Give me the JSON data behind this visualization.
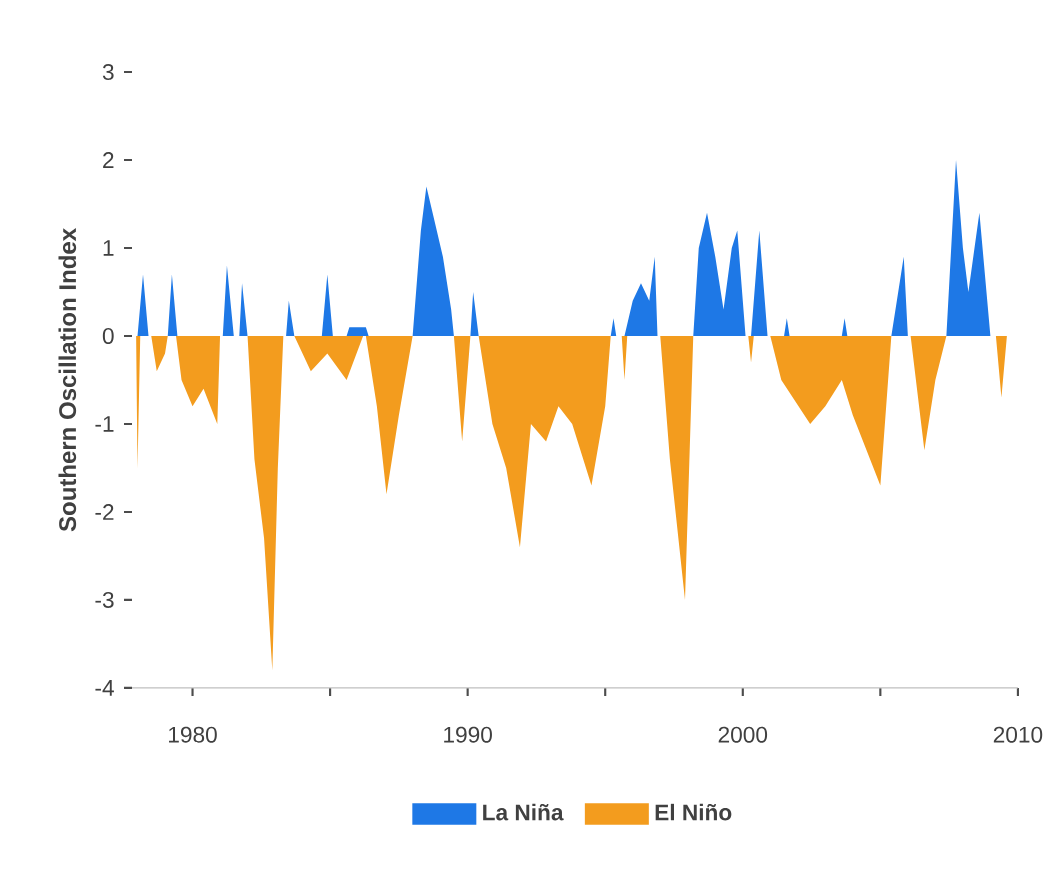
{
  "chart_data": {
    "type": "area",
    "ylabel": "Southern Oscillation Index",
    "xlim": [
      1977.8,
      2010
    ],
    "ylim": [
      -4,
      3
    ],
    "xticks": [
      1980,
      {
        "value": 1985,
        "label": null
      },
      1990,
      {
        "value": 1995,
        "label": null
      },
      2000,
      {
        "value": 2005,
        "label": null
      },
      2010
    ],
    "yticks": [
      -4,
      -3,
      -2,
      -1,
      0,
      1,
      2,
      3
    ],
    "legend": "bottom",
    "series": [
      {
        "name": "La Niña",
        "color": "#1e78e6",
        "x": [
          1978.0,
          1978.2,
          1978.4,
          1979.1,
          1979.25,
          1979.45,
          1981.1,
          1981.25,
          1981.5,
          1981.7,
          1981.8,
          1982.0,
          1983.4,
          1983.5,
          1983.7,
          1984.7,
          1984.9,
          1985.1,
          1985.6,
          1985.7,
          1986.3,
          1986.4,
          1988.0,
          1988.3,
          1988.5,
          1988.8,
          1989.1,
          1989.4,
          1989.5,
          1990.1,
          1990.2,
          1990.4,
          1995.2,
          1995.3,
          1995.4,
          1995.7,
          1996.0,
          1996.3,
          1996.6,
          1996.8,
          1996.9,
          1998.2,
          1998.4,
          1998.7,
          1999.0,
          1999.3,
          1999.6,
          1999.8,
          2000.1,
          2000.3,
          2000.6,
          2000.9,
          2001.5,
          2001.6,
          2001.7,
          2003.6,
          2003.7,
          2003.8,
          2005.4,
          2005.6,
          2005.85,
          2006.0,
          2007.4,
          2007.75,
          2008.0,
          2008.2,
          2008.6,
          2009.0
        ],
        "values": [
          0,
          0.7,
          0,
          0,
          0.7,
          0,
          0,
          0.8,
          0,
          0,
          0.6,
          0,
          0,
          0.4,
          0,
          0,
          0.7,
          0,
          0,
          0.1,
          0.1,
          0,
          0,
          1.2,
          1.7,
          1.3,
          0.9,
          0.3,
          0,
          0,
          0.5,
          0,
          0,
          0.2,
          0,
          0,
          0.4,
          0.6,
          0.4,
          0.9,
          0,
          0,
          1.0,
          1.4,
          0.9,
          0.3,
          1.0,
          1.2,
          0,
          0,
          1.2,
          0,
          0,
          0.2,
          0,
          0,
          0.2,
          0,
          0,
          0.4,
          0.9,
          0,
          0,
          2.0,
          1.0,
          0.5,
          1.4,
          0
        ]
      },
      {
        "name": "El Niño",
        "color": "#f39c1e",
        "x": [
          1977.95,
          1978.0,
          1978.1,
          1978.5,
          1978.7,
          1979.0,
          1979.1,
          1979.4,
          1979.6,
          1980.0,
          1980.4,
          1980.9,
          1981.0,
          1982.0,
          1982.25,
          1982.6,
          1982.9,
          1983.1,
          1983.3,
          1983.7,
          1984.3,
          1984.9,
          1985.6,
          1986.2,
          1986.3,
          1986.7,
          1987.05,
          1987.5,
          1988.0,
          1989.5,
          1989.8,
          1990.1,
          1990.4,
          1990.9,
          1991.4,
          1991.9,
          1992.3,
          1992.85,
          1993.3,
          1993.8,
          1994.5,
          1995.0,
          1995.2,
          1995.6,
          1995.7,
          1995.8,
          1997.0,
          1997.35,
          1997.9,
          1998.2,
          2000.2,
          2000.3,
          2000.4,
          2001.0,
          2001.4,
          2002.45,
          2003.0,
          2003.6,
          2004.0,
          2005.0,
          2005.4,
          2006.1,
          2006.6,
          2007.0,
          2007.4,
          2009.2,
          2009.4,
          2009.6
        ],
        "values": [
          0,
          -1.5,
          0,
          0,
          -0.4,
          -0.2,
          0,
          0,
          -0.5,
          -0.8,
          -0.6,
          -1.0,
          0,
          0,
          -1.4,
          -2.3,
          -3.8,
          -1.5,
          0,
          0,
          -0.4,
          -0.2,
          -0.5,
          0,
          0,
          -0.8,
          -1.8,
          -0.9,
          0,
          0,
          -1.2,
          0,
          0,
          -1.0,
          -1.5,
          -2.4,
          -1.0,
          -1.2,
          -0.8,
          -1.0,
          -1.7,
          -0.8,
          0,
          0,
          -0.5,
          0,
          0,
          -1.4,
          -3.0,
          0,
          0,
          -0.3,
          0,
          0,
          -0.5,
          -1.0,
          -0.8,
          -0.5,
          -0.9,
          -1.7,
          0,
          0,
          -1.3,
          -0.5,
          0,
          0,
          -0.7,
          0
        ]
      }
    ]
  }
}
